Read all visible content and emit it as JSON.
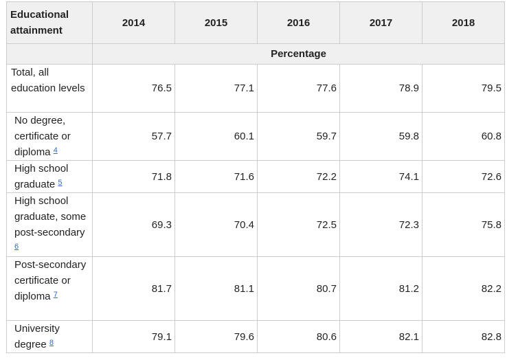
{
  "header": {
    "stub": "Educational attainment",
    "years": [
      "2014",
      "2015",
      "2016",
      "2017",
      "2018"
    ],
    "unit": "Percentage"
  },
  "rows": [
    {
      "label": "Total, all education levels",
      "note": "",
      "values": [
        "76.5",
        "77.1",
        "77.6",
        "78.9",
        "79.5"
      ]
    },
    {
      "label": "No degree, certificate or diploma",
      "note": "4",
      "values": [
        "57.7",
        "60.1",
        "59.7",
        "59.8",
        "60.8"
      ]
    },
    {
      "label": "High school graduate",
      "note": "5",
      "values": [
        "71.8",
        "71.6",
        "72.2",
        "74.1",
        "72.6"
      ]
    },
    {
      "label": "High school graduate, some post-secondary",
      "note": "6",
      "values": [
        "69.3",
        "70.4",
        "72.5",
        "72.3",
        "75.8"
      ]
    },
    {
      "label": "Post-secondary certificate or diploma",
      "note": "7",
      "values": [
        "81.7",
        "81.1",
        "80.7",
        "81.2",
        "82.2"
      ]
    },
    {
      "label": "University degree",
      "note": "8",
      "values": [
        "79.1",
        "79.6",
        "80.6",
        "82.1",
        "82.8"
      ]
    }
  ]
}
